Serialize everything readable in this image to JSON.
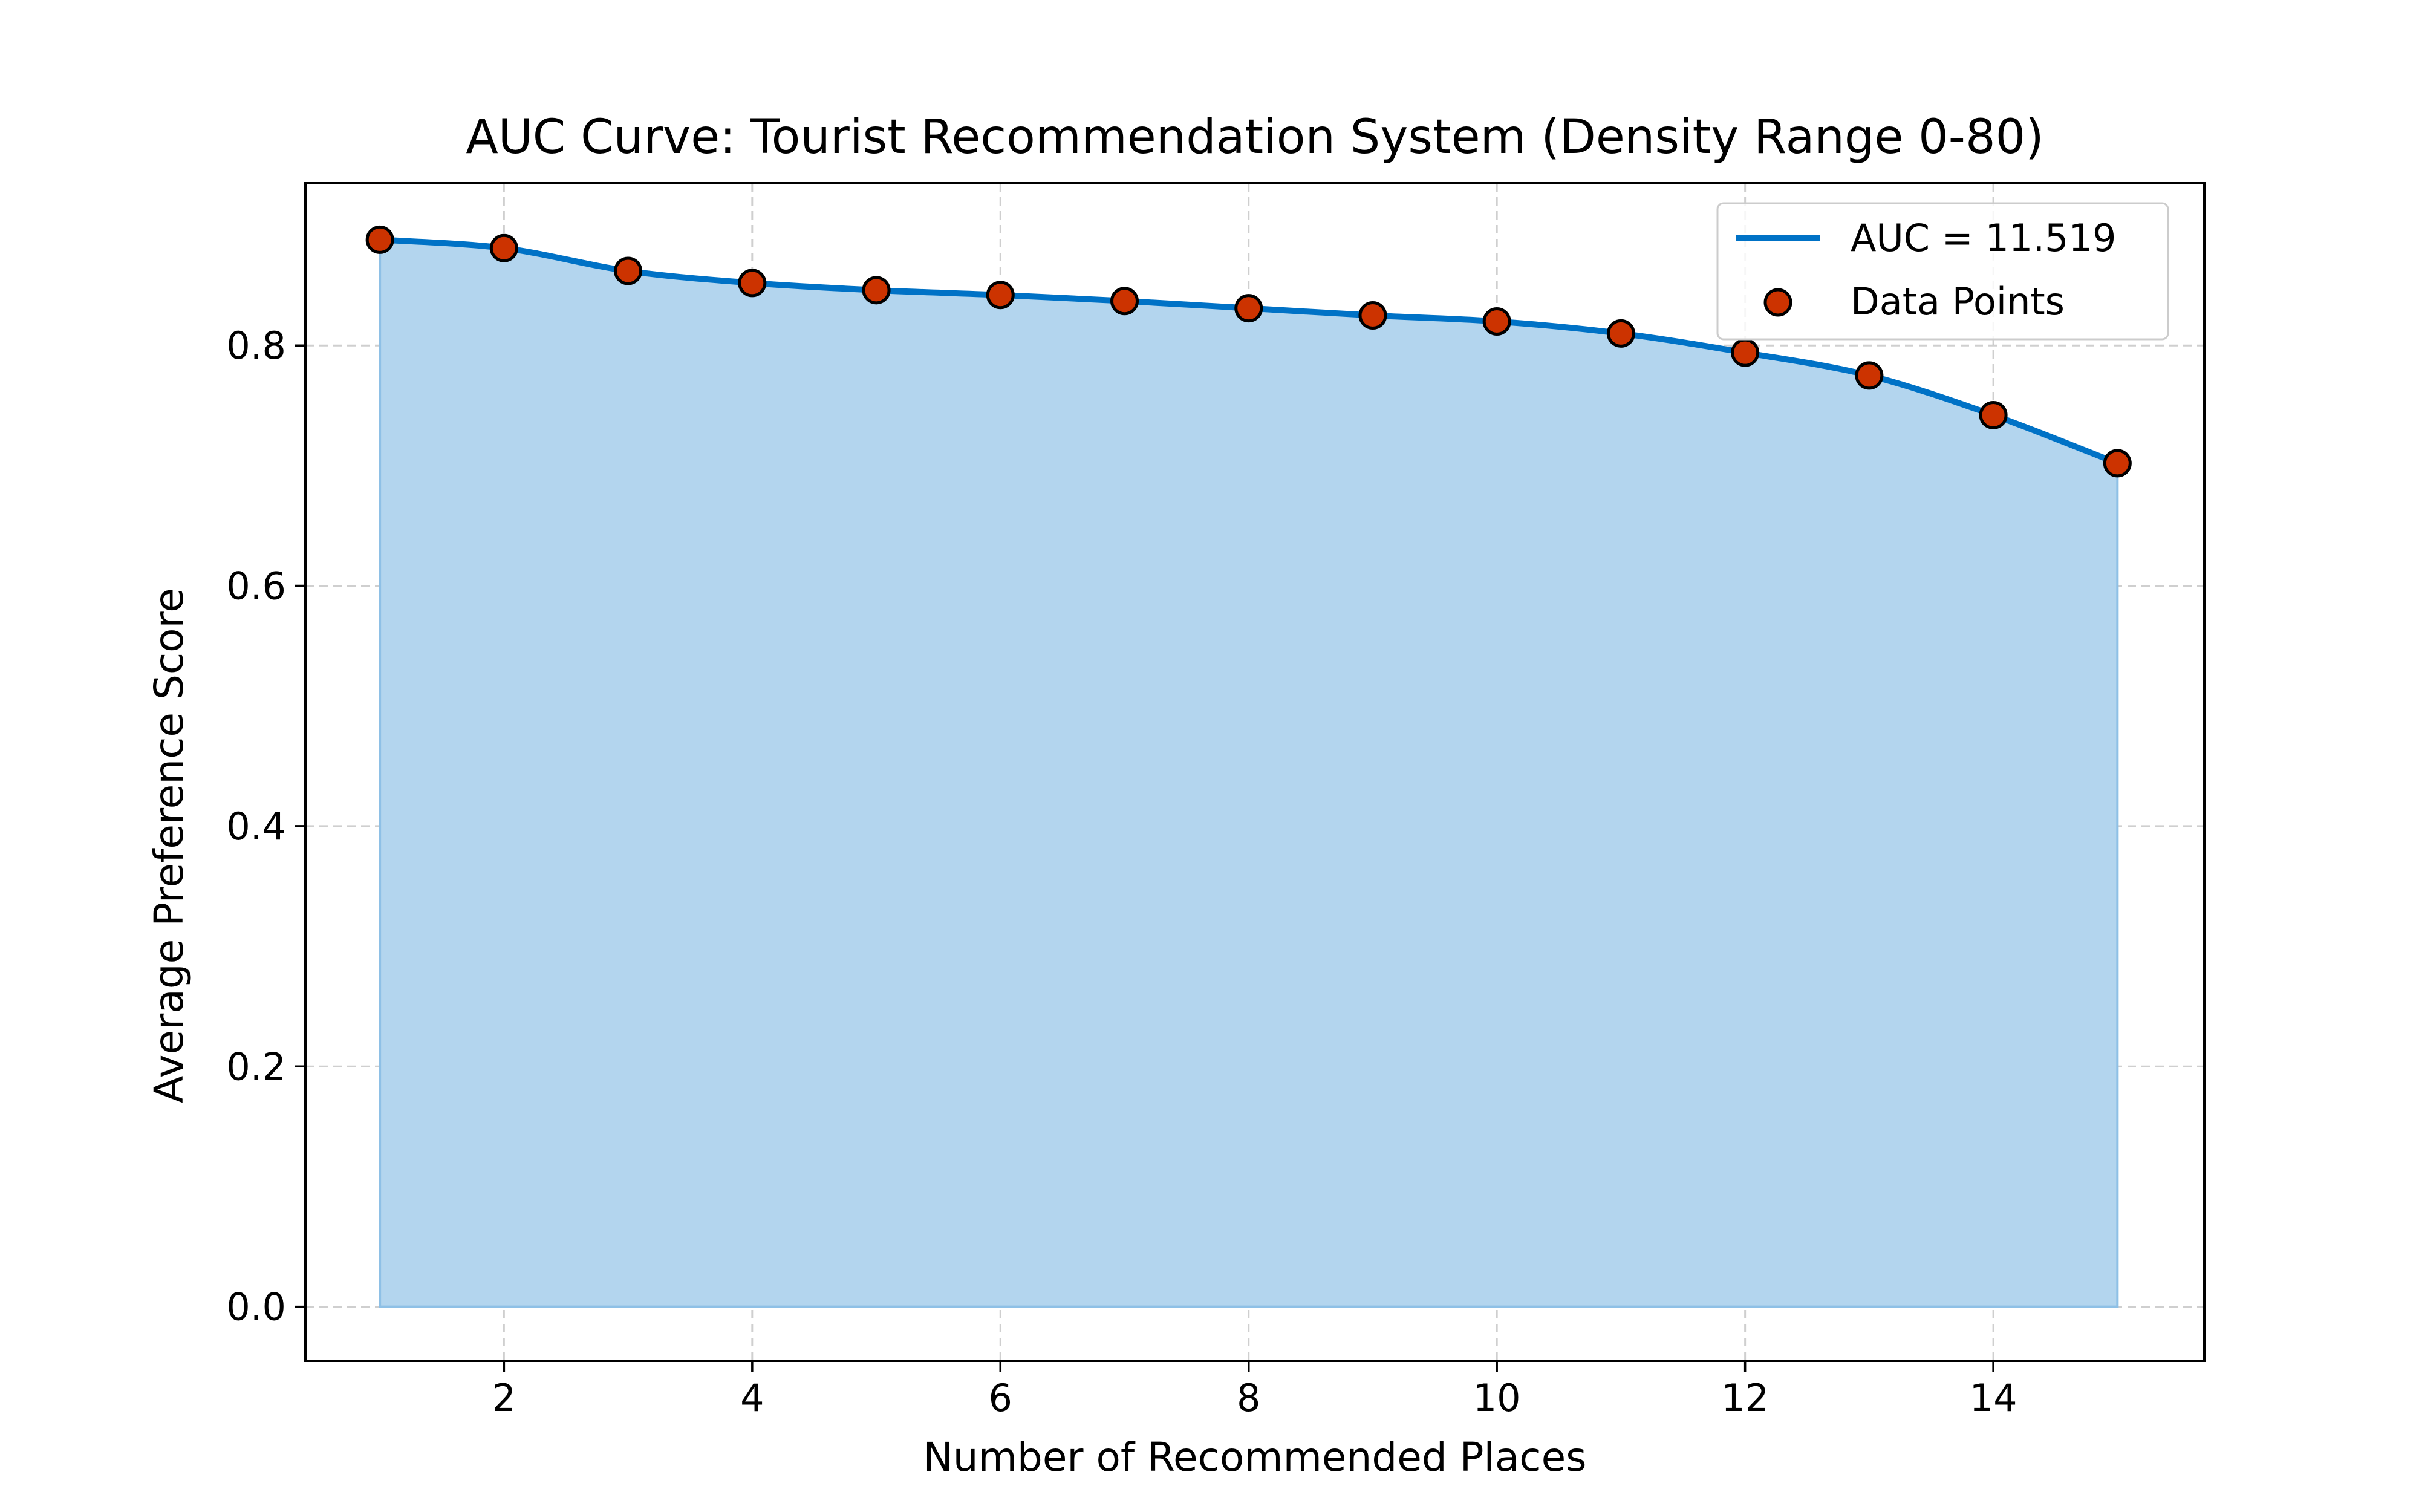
{
  "chart_data": {
    "type": "area",
    "title": "AUC Curve: Tourist Recommendation System (Density Range 0-80)",
    "xlabel": "Number of Recommended Places",
    "ylabel": "Average Preference Score",
    "xlim": [
      0.4,
      15.7
    ],
    "ylim": [
      -0.045,
      0.935
    ],
    "xticks": [
      2,
      4,
      6,
      8,
      10,
      12,
      14
    ],
    "xtick_labels": [
      "2",
      "4",
      "6",
      "8",
      "10",
      "12",
      "14"
    ],
    "yticks": [
      0.0,
      0.2,
      0.4,
      0.6,
      0.8
    ],
    "ytick_labels": [
      "0.0",
      "0.2",
      "0.4",
      "0.6",
      "0.8"
    ],
    "grid": true,
    "legend_position": "top-right",
    "x": [
      1,
      2,
      3,
      4,
      5,
      6,
      7,
      8,
      9,
      10,
      11,
      12,
      13,
      14,
      15
    ],
    "y": [
      0.888,
      0.881,
      0.862,
      0.852,
      0.846,
      0.842,
      0.837,
      0.831,
      0.825,
      0.82,
      0.81,
      0.794,
      0.775,
      0.742,
      0.702
    ],
    "series": [
      {
        "name": "AUC = 11.519",
        "kind": "line",
        "color": "#0072c6"
      },
      {
        "name": "Data Points",
        "kind": "scatter",
        "color": "#cc3300",
        "edge_color": "#000000"
      }
    ],
    "fill_color": "#b3d5ee"
  }
}
